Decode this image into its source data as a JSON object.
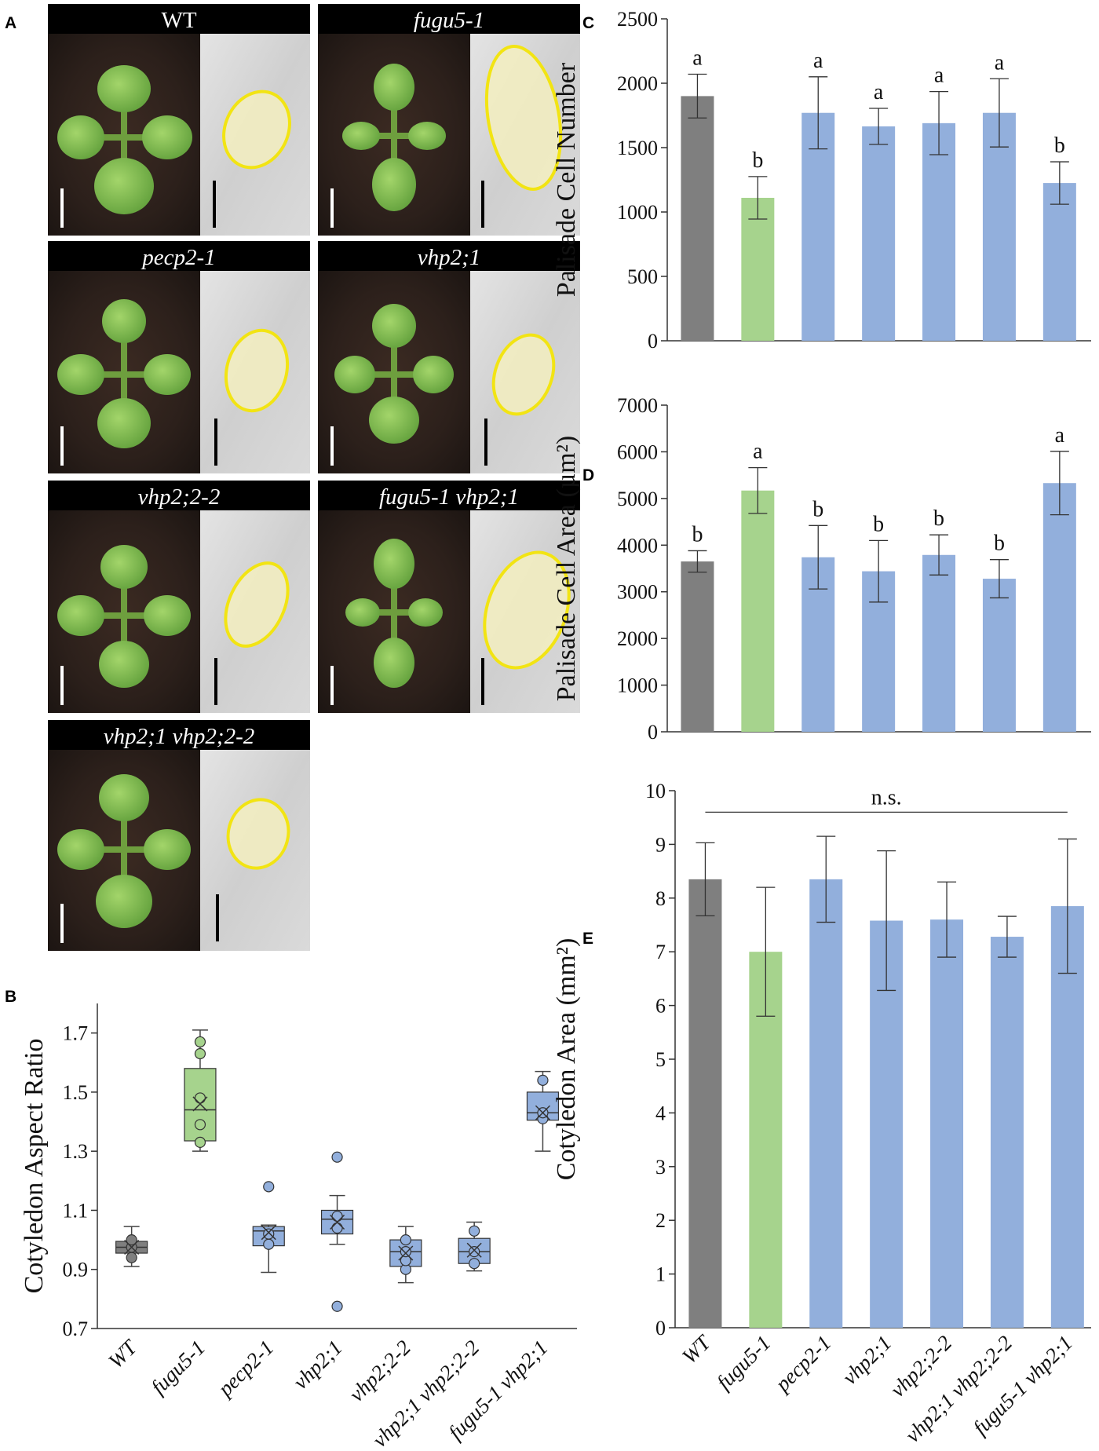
{
  "panel_letters": {
    "a": "A",
    "b": "B",
    "c": "C",
    "d": "D",
    "e": "E"
  },
  "genotypes": [
    "WT",
    "fugu5-1",
    "pecp2-1",
    "vhp2;1",
    "vhp2;2-2",
    "vhp2;1 vhp2;2-2",
    "fugu5-1 vhp2;1"
  ],
  "colors": {
    "WT": "#7f7f7f",
    "fugu5-1": "#a6d38d",
    "others": "#92afdc",
    "outline": "#4a5a6a",
    "cell_outline": "#f2e413",
    "cell_fill": "#f3eec0",
    "scale_bar_seedling": "#ffffff",
    "scale_bar_cell": "#000000"
  },
  "photo_panels": [
    {
      "title": "WT",
      "italic": false
    },
    {
      "title": "fugu5-1",
      "italic": true
    },
    {
      "title": "pecp2-1",
      "italic": true
    },
    {
      "title": "vhp2;1",
      "italic": true
    },
    {
      "title": "vhp2;2-2",
      "italic": true
    },
    {
      "title": "fugu5-1 vhp2;1",
      "italic": true
    },
    {
      "title": "vhp2;1 vhp2;2-2",
      "italic": true
    }
  ],
  "chart_data": [
    {
      "panel": "B",
      "type": "box",
      "title": "",
      "ylabel": "Cotyledon Aspect Ratio",
      "xlabel": "",
      "ylim": [
        0.7,
        1.8
      ],
      "yticks": [
        "0.7",
        "0.9",
        "1.1",
        "1.3",
        "1.5",
        "1.7"
      ],
      "categories": [
        "WT",
        "fugu5-1",
        "pecp2-1",
        "vhp2;1",
        "vhp2;2-2",
        "vhp2;1 vhp2;2-2",
        "fugu5-1 vhp2;1"
      ],
      "boxes": [
        {
          "min": 0.91,
          "q1": 0.955,
          "median": 0.975,
          "q3": 0.995,
          "max": 1.045,
          "mean": 0.975,
          "points": [
            0.94,
            0.975,
            1.0
          ]
        },
        {
          "min": 1.3,
          "q1": 1.335,
          "median": 1.44,
          "q3": 1.58,
          "max": 1.71,
          "mean": 1.46,
          "points": [
            1.33,
            1.39,
            1.48,
            1.63,
            1.67
          ]
        },
        {
          "min": 0.89,
          "q1": 0.98,
          "median": 1.03,
          "q3": 1.045,
          "max": 1.05,
          "mean": 1.025,
          "points": [
            0.985,
            1.02,
            1.18
          ]
        },
        {
          "min": 0.985,
          "q1": 1.02,
          "median": 1.07,
          "q3": 1.1,
          "max": 1.15,
          "mean": 1.06,
          "points": [
            0.775,
            1.04,
            1.08,
            1.28
          ]
        },
        {
          "min": 0.855,
          "q1": 0.91,
          "median": 0.96,
          "q3": 1.0,
          "max": 1.045,
          "mean": 0.955,
          "points": [
            0.9,
            0.93,
            0.96,
            1.0
          ]
        },
        {
          "min": 0.895,
          "q1": 0.92,
          "median": 0.96,
          "q3": 1.005,
          "max": 1.06,
          "mean": 0.965,
          "points": [
            0.92,
            0.96,
            1.03
          ]
        },
        {
          "min": 1.3,
          "q1": 1.405,
          "median": 1.43,
          "q3": 1.5,
          "max": 1.57,
          "mean": 1.43,
          "points": [
            1.41,
            1.43,
            1.54
          ]
        }
      ]
    },
    {
      "panel": "C",
      "type": "bar",
      "title": "",
      "ylabel": "Palisade Cell Number",
      "xlabel": "",
      "ylim": [
        0,
        2500
      ],
      "yticks": [
        "0",
        "500",
        "1000",
        "1500",
        "2000",
        "2500"
      ],
      "categories": [
        "WT",
        "fugu5-1",
        "pecp2-1",
        "vhp2;1",
        "vhp2;2-2",
        "vhp2;1 vhp2;2-2",
        "fugu5-1 vhp2;1"
      ],
      "values": [
        1900,
        1110,
        1770,
        1665,
        1690,
        1770,
        1225
      ],
      "errors": [
        170,
        165,
        280,
        140,
        245,
        265,
        165
      ],
      "labels": [
        "a",
        "b",
        "a",
        "a",
        "a",
        "a",
        "b"
      ]
    },
    {
      "panel": "D",
      "type": "bar",
      "title": "",
      "ylabel": "Palisade Cell Area (µm²)",
      "xlabel": "",
      "ylim": [
        0,
        7000
      ],
      "yticks": [
        "0",
        "1000",
        "2000",
        "3000",
        "4000",
        "5000",
        "6000",
        "7000"
      ],
      "categories": [
        "WT",
        "fugu5-1",
        "pecp2-1",
        "vhp2;1",
        "vhp2;2-2",
        "vhp2;1 vhp2;2-2",
        "fugu5-1 vhp2;1"
      ],
      "values": [
        3650,
        5170,
        3740,
        3440,
        3790,
        3280,
        5330
      ],
      "errors": [
        230,
        490,
        680,
        660,
        430,
        410,
        680
      ],
      "labels": [
        "b",
        "a",
        "b",
        "b",
        "b",
        "b",
        "a"
      ]
    },
    {
      "panel": "E",
      "type": "bar",
      "title": "",
      "ylabel": "Cotyledon Area (mm²)",
      "xlabel": "",
      "ylim": [
        0,
        10
      ],
      "yticks": [
        "0",
        "1",
        "2",
        "3",
        "4",
        "5",
        "6",
        "7",
        "8",
        "9",
        "10"
      ],
      "categories": [
        "WT",
        "fugu5-1",
        "pecp2-1",
        "vhp2;1",
        "vhp2;2-2",
        "vhp2;1 vhp2;2-2",
        "fugu5-1 vhp2;1"
      ],
      "values": [
        8.35,
        7.0,
        8.35,
        7.58,
        7.6,
        7.28,
        7.85
      ],
      "errors": [
        0.68,
        1.2,
        0.8,
        1.3,
        0.7,
        0.38,
        1.25
      ],
      "annotation": "n.s."
    }
  ]
}
